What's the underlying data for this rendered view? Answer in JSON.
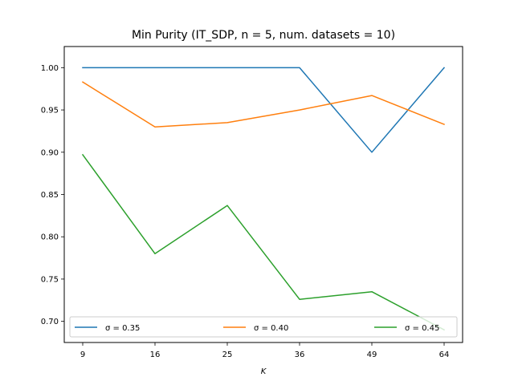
{
  "chart_data": {
    "type": "line",
    "title": "Min Purity (IT_SDP, n = 5, num. datasets = 10)",
    "xlabel": "K",
    "ylabel": "",
    "categories": [
      "9",
      "16",
      "25",
      "36",
      "49",
      "64"
    ],
    "ylim": [
      0.675,
      1.025
    ],
    "yticks": [
      "0.70",
      "0.75",
      "0.80",
      "0.85",
      "0.90",
      "0.95",
      "1.00"
    ],
    "grid": false,
    "legend_position": "bottom",
    "series": [
      {
        "name": "σ = 0.35",
        "color": "#1f77b4",
        "values": [
          1.0,
          1.0,
          1.0,
          1.0,
          0.9,
          1.0
        ]
      },
      {
        "name": "σ = 0.40",
        "color": "#ff7f0e",
        "values": [
          0.983,
          0.93,
          0.935,
          0.95,
          0.967,
          0.933
        ]
      },
      {
        "name": "σ = 0.45",
        "color": "#2ca02c",
        "values": [
          0.897,
          0.78,
          0.837,
          0.726,
          0.735,
          0.69
        ]
      }
    ]
  }
}
